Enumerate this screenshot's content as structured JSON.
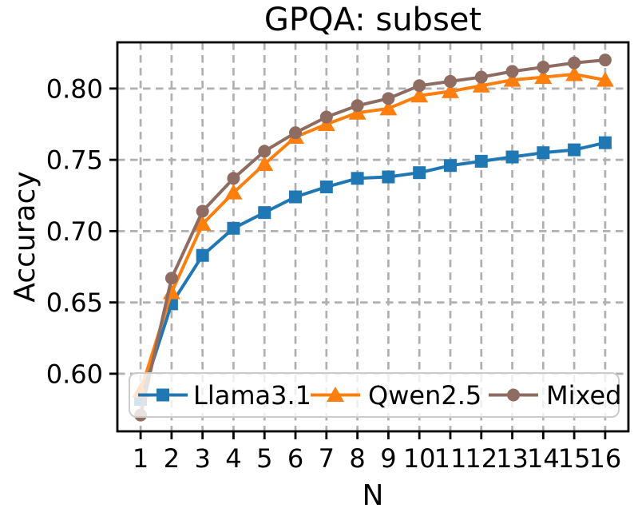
{
  "chart_data": {
    "type": "line",
    "title": "GPQA: subset",
    "xlabel": "N",
    "ylabel": "Accuracy",
    "grid": true,
    "grid_style": "dashed",
    "grid_color": "#b0b0b0",
    "background_color": "#ffffff",
    "spine_color": "#000000",
    "legend_position": "lower center inside",
    "legend_border_color": "#cccccc",
    "legend_background": "#ffffff",
    "xlim": [
      0.25,
      16.75
    ],
    "ylim": [
      0.5596,
      0.8324
    ],
    "x": [
      1,
      2,
      3,
      4,
      5,
      6,
      7,
      8,
      9,
      10,
      11,
      12,
      13,
      14,
      15,
      16
    ],
    "xtick_labels": [
      "1",
      "2",
      "3",
      "4",
      "5",
      "6",
      "7",
      "8",
      "9",
      "10",
      "11",
      "12",
      "13",
      "14",
      "15",
      "16"
    ],
    "yticks": [
      0.6,
      0.65,
      0.7,
      0.75,
      0.8
    ],
    "ytick_labels": [
      "0.60",
      "0.65",
      "0.70",
      "0.75",
      "0.80"
    ],
    "series": [
      {
        "name": "Llama3.1",
        "color": "#1f77b4",
        "marker": "square",
        "values": [
          0.582,
          0.649,
          0.683,
          0.702,
          0.713,
          0.724,
          0.731,
          0.737,
          0.738,
          0.741,
          0.746,
          0.749,
          0.752,
          0.755,
          0.757,
          0.762
        ]
      },
      {
        "name": "Qwen2.5",
        "color": "#ff7f0e",
        "marker": "triangle-up",
        "values": [
          0.588,
          0.657,
          0.705,
          0.727,
          0.747,
          0.766,
          0.775,
          0.783,
          0.786,
          0.795,
          0.798,
          0.802,
          0.806,
          0.808,
          0.81,
          0.806
        ]
      },
      {
        "name": "Mixed",
        "color": "#8e6c62",
        "marker": "circle",
        "values": [
          0.571,
          0.667,
          0.714,
          0.737,
          0.756,
          0.769,
          0.78,
          0.788,
          0.793,
          0.802,
          0.805,
          0.808,
          0.812,
          0.815,
          0.818,
          0.82
        ]
      }
    ]
  }
}
